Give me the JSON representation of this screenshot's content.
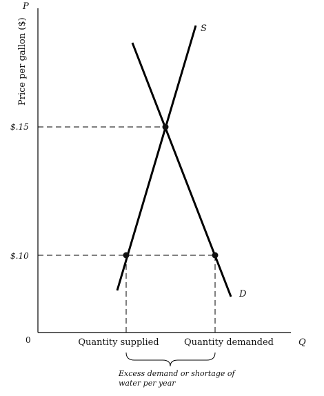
{
  "chart_data": {
    "type": "line",
    "title": "",
    "x_axis_letter": "Q",
    "y_axis_letter": "P",
    "ylabel": "Price per gallon ($)",
    "origin_label": "0",
    "y_ticks": [
      {
        "value": 0.15,
        "label": "$.15"
      },
      {
        "value": 0.1,
        "label": "$.10"
      }
    ],
    "x_categories": [
      {
        "name": "Quantity supplied",
        "value": 3
      },
      {
        "name": "Quantity demanded",
        "value": 6
      }
    ],
    "ylim": [
      0.07,
      0.2
    ],
    "xlim": [
      0,
      9.2
    ],
    "series": [
      {
        "name": "S",
        "color": "#000000",
        "points": [
          [
            2.8,
            0.087
          ],
          [
            5.6,
            0.196
          ]
        ]
      },
      {
        "name": "D",
        "color": "#000000",
        "points": [
          [
            3.3,
            0.186
          ],
          [
            6.5,
            0.084
          ]
        ]
      }
    ],
    "points": [
      {
        "x": 4.45,
        "y": 0.15
      },
      {
        "x": 3.0,
        "y": 0.1
      },
      {
        "x": 6.0,
        "y": 0.1
      }
    ],
    "annotation": [
      "Excess demand or shortage of",
      "water per year"
    ]
  }
}
